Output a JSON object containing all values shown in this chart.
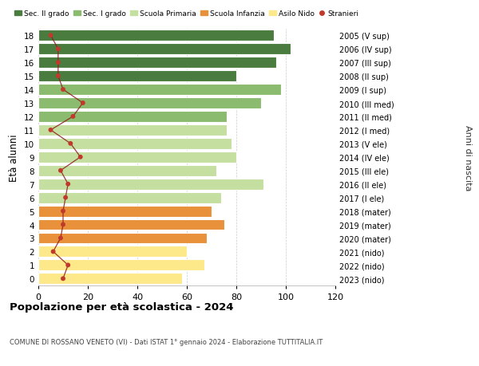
{
  "ages": [
    0,
    1,
    2,
    3,
    4,
    5,
    6,
    7,
    8,
    9,
    10,
    11,
    12,
    13,
    14,
    15,
    16,
    17,
    18
  ],
  "bar_values": [
    58,
    67,
    60,
    68,
    75,
    70,
    74,
    91,
    72,
    80,
    78,
    76,
    76,
    90,
    98,
    80,
    96,
    102,
    95
  ],
  "bar_colors": [
    "#fde88a",
    "#fde88a",
    "#fde88a",
    "#e8903a",
    "#e8903a",
    "#e8903a",
    "#c5dfa0",
    "#c5dfa0",
    "#c5dfa0",
    "#c5dfa0",
    "#c5dfa0",
    "#c5dfa0",
    "#8bbb6e",
    "#8bbb6e",
    "#8bbb6e",
    "#4a7c3f",
    "#4a7c3f",
    "#4a7c3f",
    "#4a7c3f"
  ],
  "stranieri_values": [
    10,
    12,
    6,
    9,
    10,
    10,
    11,
    12,
    9,
    17,
    13,
    5,
    14,
    18,
    10,
    8,
    8,
    8,
    5
  ],
  "right_labels": [
    "2023 (nido)",
    "2022 (nido)",
    "2021 (nido)",
    "2020 (mater)",
    "2019 (mater)",
    "2018 (mater)",
    "2017 (I ele)",
    "2016 (II ele)",
    "2015 (III ele)",
    "2014 (IV ele)",
    "2013 (V ele)",
    "2012 (I med)",
    "2011 (II med)",
    "2010 (III med)",
    "2009 (I sup)",
    "2008 (II sup)",
    "2007 (III sup)",
    "2006 (IV sup)",
    "2005 (V sup)"
  ],
  "legend_labels": [
    "Sec. II grado",
    "Sec. I grado",
    "Scuola Primaria",
    "Scuola Infanzia",
    "Asilo Nido",
    "Stranieri"
  ],
  "legend_colors": [
    "#4a7c3f",
    "#8bbb6e",
    "#c5dfa0",
    "#e8903a",
    "#fde88a",
    "#c0392b"
  ],
  "ylabel": "Età alunni",
  "right_ylabel": "Anni di nascita",
  "title": "Popolazione per età scolastica - 2024",
  "subtitle": "COMUNE DI ROSSANO VENETO (VI) - Dati ISTAT 1° gennaio 2024 - Elaborazione TUTTITALIA.IT",
  "xlim": [
    0,
    120
  ],
  "xticks": [
    0,
    20,
    40,
    60,
    80,
    100,
    120
  ],
  "background_color": "#ffffff",
  "grid_color": "#cccccc"
}
